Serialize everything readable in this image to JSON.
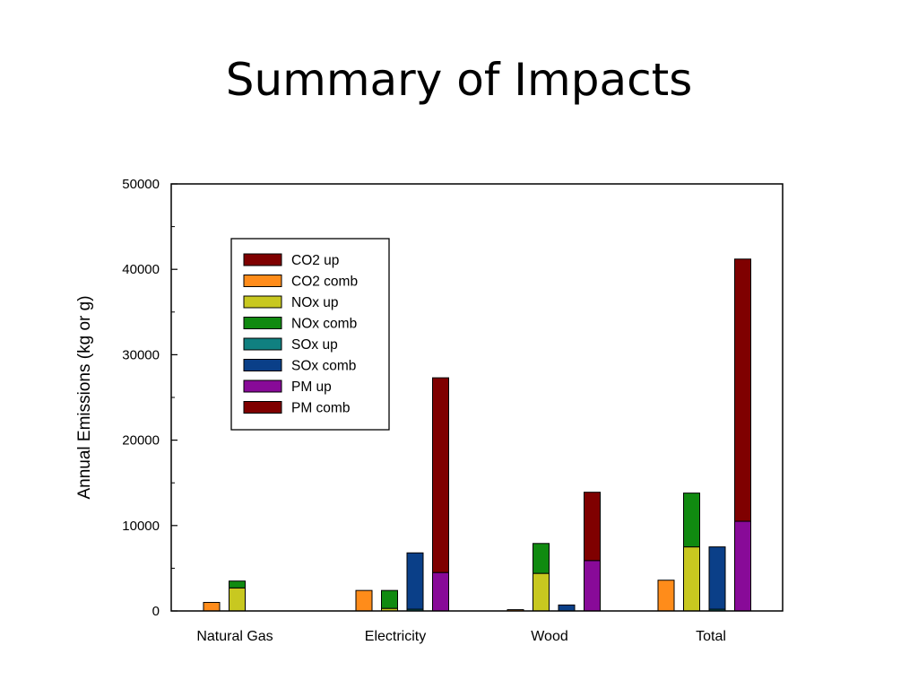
{
  "slide": {
    "title": "Summary of Impacts"
  },
  "chart_data": {
    "type": "bar",
    "stacked_groups": true,
    "title": "",
    "xlabel": "",
    "ylabel": "Annual Emissions (kg or g)",
    "ylim": [
      0,
      50000
    ],
    "yticks": [
      0,
      10000,
      20000,
      30000,
      40000,
      50000
    ],
    "grid": false,
    "legend_position": "top-left",
    "categories": [
      "Natural Gas",
      "Electricity",
      "Wood",
      "Total"
    ],
    "legend": [
      {
        "name": "CO2 up",
        "color": "#7f0000"
      },
      {
        "name": "CO2 comb",
        "color": "#ff8c1a"
      },
      {
        "name": "NOx up",
        "color": "#c8c820"
      },
      {
        "name": "NOx comb",
        "color": "#108a10"
      },
      {
        "name": "SOx up",
        "color": "#108080"
      },
      {
        "name": "SOx comb",
        "color": "#0a3f88"
      },
      {
        "name": "PM up",
        "color": "#880a98"
      },
      {
        "name": "PM comb",
        "color": "#7f0000"
      }
    ],
    "bars": [
      {
        "category": "Natural Gas",
        "slot": 0,
        "up_name": "CO2 up",
        "up": 0,
        "comb_name": "CO2 comb",
        "comb": 1000
      },
      {
        "category": "Natural Gas",
        "slot": 1,
        "up_name": "NOx up",
        "up": 2700,
        "comb_name": "NOx comb",
        "comb": 800
      },
      {
        "category": "Natural Gas",
        "slot": 2,
        "up_name": "SOx up",
        "up": 0,
        "comb_name": "SOx comb",
        "comb": 0
      },
      {
        "category": "Natural Gas",
        "slot": 3,
        "up_name": "PM up",
        "up": 0,
        "comb_name": "PM comb",
        "comb": 0
      },
      {
        "category": "Electricity",
        "slot": 0,
        "up_name": "CO2 up",
        "up": 0,
        "comb_name": "CO2 comb",
        "comb": 2400
      },
      {
        "category": "Electricity",
        "slot": 1,
        "up_name": "NOx up",
        "up": 300,
        "comb_name": "NOx comb",
        "comb": 2100
      },
      {
        "category": "Electricity",
        "slot": 2,
        "up_name": "SOx up",
        "up": 200,
        "comb_name": "SOx comb",
        "comb": 6600
      },
      {
        "category": "Electricity",
        "slot": 3,
        "up_name": "PM up",
        "up": 4500,
        "comb_name": "PM comb",
        "comb": 22800
      },
      {
        "category": "Wood",
        "slot": 0,
        "up_name": "CO2 up",
        "up": 0,
        "comb_name": "CO2 comb",
        "comb": 150
      },
      {
        "category": "Wood",
        "slot": 1,
        "up_name": "NOx up",
        "up": 4400,
        "comb_name": "NOx comb",
        "comb": 3500
      },
      {
        "category": "Wood",
        "slot": 2,
        "up_name": "SOx up",
        "up": 0,
        "comb_name": "SOx comb",
        "comb": 700
      },
      {
        "category": "Wood",
        "slot": 3,
        "up_name": "PM up",
        "up": 5900,
        "comb_name": "PM comb",
        "comb": 8000
      },
      {
        "category": "Total",
        "slot": 0,
        "up_name": "CO2 up",
        "up": 0,
        "comb_name": "CO2 comb",
        "comb": 3600
      },
      {
        "category": "Total",
        "slot": 1,
        "up_name": "NOx up",
        "up": 7500,
        "comb_name": "NOx comb",
        "comb": 6300
      },
      {
        "category": "Total",
        "slot": 2,
        "up_name": "SOx up",
        "up": 200,
        "comb_name": "SOx comb",
        "comb": 7300
      },
      {
        "category": "Total",
        "slot": 3,
        "up_name": "PM up",
        "up": 10500,
        "comb_name": "PM comb",
        "comb": 30700
      }
    ]
  }
}
